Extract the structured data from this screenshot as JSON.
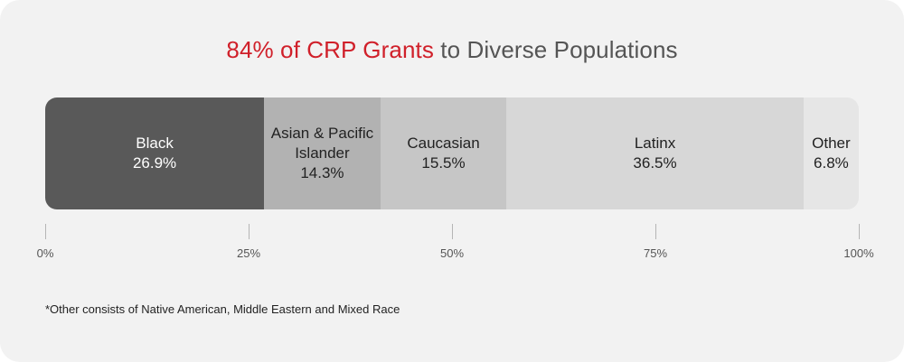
{
  "title": {
    "highlight": "84% of CRP Grants",
    "rest": " to Diverse Populations",
    "highlight_color": "#d0202a"
  },
  "chart_data": {
    "type": "bar",
    "orientation": "horizontal-stacked",
    "title": "84% of CRP Grants to Diverse Populations",
    "segments": [
      {
        "label": "Black",
        "value": 26.9,
        "value_label": "26.9%",
        "color": "#595959",
        "text_color": "#ffffff"
      },
      {
        "label": "Asian & Pacific Islander",
        "value": 14.3,
        "value_label": "14.3%",
        "color": "#b2b2b2",
        "text_color": "#222222"
      },
      {
        "label": "Caucasian",
        "value": 15.5,
        "value_label": "15.5%",
        "color": "#c6c6c6",
        "text_color": "#222222"
      },
      {
        "label": "Latinx",
        "value": 36.5,
        "value_label": "36.5%",
        "color": "#d7d7d7",
        "text_color": "#222222"
      },
      {
        "label": "Other",
        "value": 6.8,
        "value_label": "6.8%",
        "color": "#e6e6e6",
        "text_color": "#222222"
      }
    ],
    "xlim": [
      0,
      100
    ],
    "ticks": [
      {
        "value": 0,
        "label": "0%"
      },
      {
        "value": 25,
        "label": "25%"
      },
      {
        "value": 50,
        "label": "50%"
      },
      {
        "value": 75,
        "label": "75%"
      },
      {
        "value": 100,
        "label": "100%"
      }
    ]
  },
  "footnote": "*Other consists of Native American, Middle Eastern and Mixed Race"
}
